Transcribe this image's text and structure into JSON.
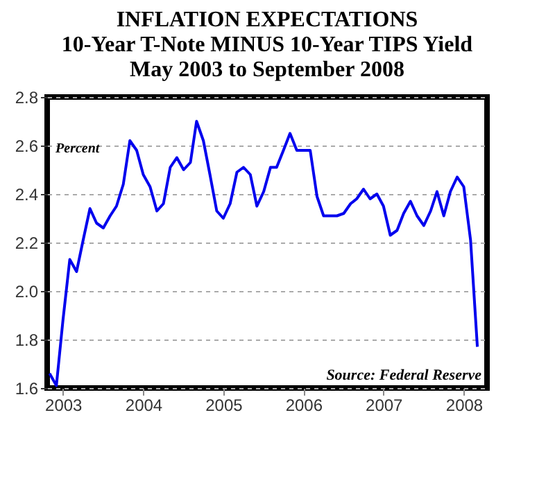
{
  "chart_data": {
    "type": "line",
    "title": [
      "INFLATION EXPECTATIONS",
      "10-Year T-Note MINUS 10-Year TIPS Yield",
      "May 2003 to September 2008"
    ],
    "ylabel": "Percent",
    "annotations": [
      "Source: Federal Reserve"
    ],
    "x": [
      "2003-05",
      "2003-06",
      "2003-07",
      "2003-08",
      "2003-09",
      "2003-10",
      "2003-11",
      "2003-12",
      "2004-01",
      "2004-02",
      "2004-03",
      "2004-04",
      "2004-05",
      "2004-06",
      "2004-07",
      "2004-08",
      "2004-09",
      "2004-10",
      "2004-11",
      "2004-12",
      "2005-01",
      "2005-02",
      "2005-03",
      "2005-04",
      "2005-05",
      "2005-06",
      "2005-07",
      "2005-08",
      "2005-09",
      "2005-10",
      "2005-11",
      "2005-12",
      "2006-01",
      "2006-02",
      "2006-03",
      "2006-04",
      "2006-05",
      "2006-06",
      "2006-07",
      "2006-08",
      "2006-09",
      "2006-10",
      "2006-11",
      "2006-12",
      "2007-01",
      "2007-02",
      "2007-03",
      "2007-04",
      "2007-05",
      "2007-06",
      "2007-07",
      "2007-08",
      "2007-09",
      "2007-10",
      "2007-11",
      "2007-12",
      "2008-01",
      "2008-02",
      "2008-03",
      "2008-04",
      "2008-05",
      "2008-06",
      "2008-07",
      "2008-08",
      "2008-09"
    ],
    "series": [
      {
        "color": "#0000ee",
        "values": [
          1.66,
          1.61,
          1.88,
          2.13,
          2.08,
          2.21,
          2.34,
          2.28,
          2.26,
          2.31,
          2.35,
          2.44,
          2.62,
          2.58,
          2.48,
          2.43,
          2.33,
          2.36,
          2.51,
          2.55,
          2.5,
          2.53,
          2.7,
          2.62,
          2.48,
          2.33,
          2.3,
          2.36,
          2.49,
          2.51,
          2.48,
          2.35,
          2.41,
          2.51,
          2.51,
          2.58,
          2.65,
          2.58,
          2.58,
          2.58,
          2.39,
          2.31,
          2.31,
          2.31,
          2.32,
          2.36,
          2.38,
          2.42,
          2.38,
          2.4,
          2.35,
          2.23,
          2.25,
          2.32,
          2.37,
          2.31,
          2.27,
          2.33,
          2.41,
          2.31,
          2.41,
          2.47,
          2.43,
          2.21,
          1.77
        ]
      }
    ],
    "xlim": [
      "2003-04-20",
      "2008-10-15"
    ],
    "xticks": [
      {
        "value": "2003-07-01",
        "label": "2003"
      },
      {
        "value": "2004-07-01",
        "label": "2004"
      },
      {
        "value": "2005-07-01",
        "label": "2005"
      },
      {
        "value": "2006-07-01",
        "label": "2006"
      },
      {
        "value": "2007-07-01",
        "label": "2007"
      },
      {
        "value": "2008-07-01",
        "label": "2008"
      }
    ],
    "ylim": [
      1.6,
      2.8
    ],
    "yticks": [
      {
        "value": 1.6,
        "label": "1.6"
      },
      {
        "value": 1.8,
        "label": "1.8"
      },
      {
        "value": 2.0,
        "label": "2.0"
      },
      {
        "value": 2.2,
        "label": "2.2"
      },
      {
        "value": 2.4,
        "label": "2.4"
      },
      {
        "value": 2.6,
        "label": "2.6"
      },
      {
        "value": 2.8,
        "label": "2.8"
      }
    ],
    "grid": "y",
    "line_style": "solid",
    "marker": "none"
  }
}
